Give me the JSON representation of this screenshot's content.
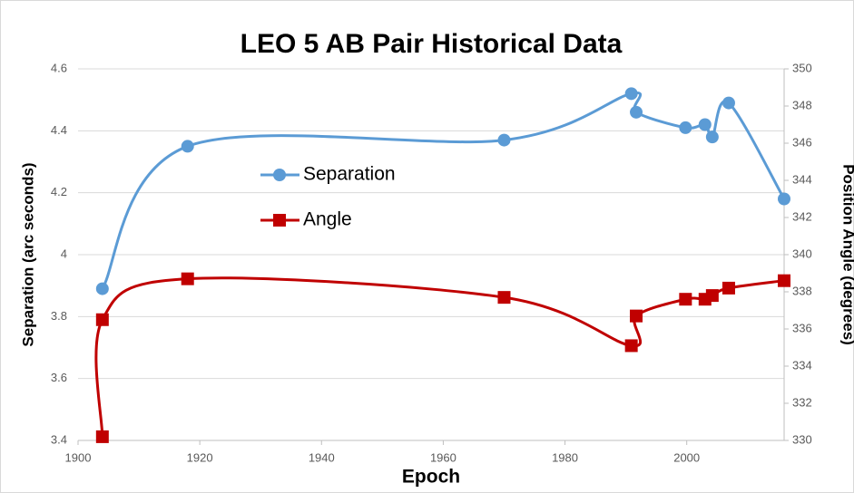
{
  "chart_data": {
    "type": "line",
    "title": "LEO 5 AB Pair Historical Data",
    "xlabel": "Epoch",
    "ylabel": "Separation (arc seconds)",
    "y2label": "Position Angle (degrees)",
    "xlim": [
      1900,
      2016
    ],
    "xticks": [
      1900,
      1920,
      1940,
      1960,
      1980,
      2000
    ],
    "ylim": [
      3.4,
      4.6
    ],
    "yticks": [
      3.4,
      3.6,
      3.8,
      4,
      4.2,
      4.4,
      4.6
    ],
    "y2lim": [
      330,
      350
    ],
    "y2ticks": [
      330,
      332,
      334,
      336,
      338,
      340,
      342,
      344,
      346,
      348,
      350
    ],
    "grid": true,
    "legend": "upper left",
    "series": [
      {
        "name": "Separation",
        "color": "#5b9bd5",
        "marker": "circle",
        "x": [
          1904,
          1918,
          1970,
          1990.9,
          1991.7,
          1999.8,
          2003,
          2004.2,
          2006.9,
          2016
        ],
        "values": [
          3.89,
          4.35,
          4.37,
          4.52,
          4.46,
          4.41,
          4.42,
          4.38,
          4.49,
          4.18
        ]
      },
      {
        "name": "Angle",
        "color": "#c00000",
        "marker": "square",
        "axis": "y2",
        "x": [
          1904,
          1904,
          1918,
          1970,
          1990.9,
          1991.7,
          1999.8,
          2003,
          2004.2,
          2006.9,
          2016
        ],
        "values": [
          330.2,
          336.5,
          338.7,
          337.7,
          335.1,
          336.7,
          337.6,
          337.6,
          337.8,
          338.2,
          338.6
        ]
      }
    ]
  }
}
